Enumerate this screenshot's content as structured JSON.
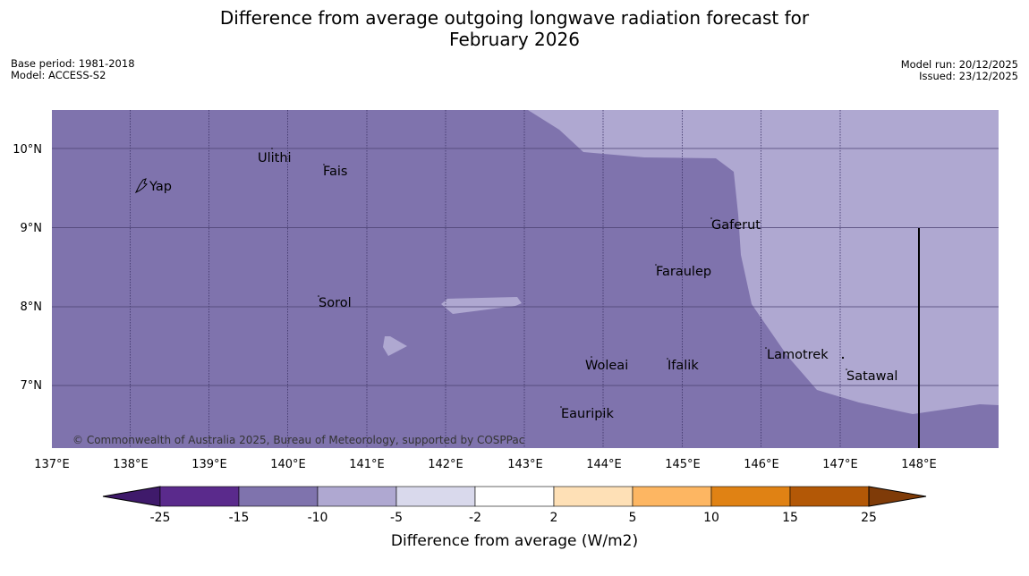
{
  "title": {
    "line1": "Difference from average outgoing longwave radiation forecast for",
    "line2": "February 2026"
  },
  "meta": {
    "base_period": "Base period: 1981-2018",
    "model": "Model: ACCESS-S2",
    "model_run": "Model run: 20/12/2025",
    "issued": "Issued: 23/12/2025"
  },
  "map": {
    "lat_labels": [
      "10°N",
      "9°N",
      "8°N",
      "7°N"
    ],
    "lon_labels": [
      "137°E",
      "138°E",
      "139°E",
      "140°E",
      "141°E",
      "142°E",
      "143°E",
      "144°E",
      "145°E",
      "146°E",
      "147°E",
      "148°E"
    ],
    "places": [
      "Ulithi",
      "Fais",
      "Yap",
      "Gaferut",
      "Faraulep",
      "Sorol",
      "Lamotrek",
      "Woleai",
      "Ifalik",
      "Satawal",
      "Eauripik"
    ],
    "copyright": "© Commonwealth of Australia 2025, Bureau of Meteorology, supported by COSPPac",
    "fill_colors": {
      "dark": "#7f73ad",
      "light": "#afa8d1"
    }
  },
  "colorbar": {
    "labels": [
      "-25",
      "-15",
      "-10",
      "-5",
      "-2",
      "2",
      "5",
      "10",
      "15",
      "25"
    ],
    "colors": [
      "#3f1a6b",
      "#5a2a8c",
      "#7f73ad",
      "#afa8d1",
      "#d9d9ec",
      "#ffffff",
      "#fee0b6",
      "#fdb662",
      "#e08214",
      "#b35806",
      "#7f3b08"
    ],
    "title": "Difference from average (W/m2)"
  }
}
